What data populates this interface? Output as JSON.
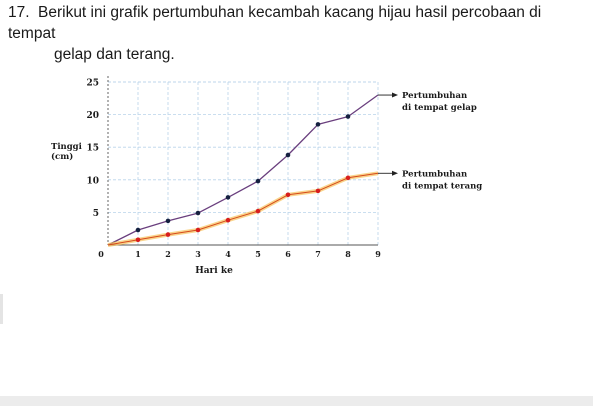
{
  "question": {
    "number": "17.",
    "line1": "Berikut ini grafik pertumbuhan kecambah kacang hijau hasil percobaan di tempat",
    "line2": "gelap dan terang."
  },
  "chart_data": {
    "type": "line",
    "title": "",
    "xlabel": "Hari ke",
    "ylabel": "Tinggi (cm)",
    "ylabel_lines": [
      "Tinggi",
      "(cm)"
    ],
    "x": [
      0,
      1,
      2,
      3,
      4,
      5,
      6,
      7,
      8,
      9
    ],
    "x_ticks": [
      "0",
      "1",
      "2",
      "3",
      "4",
      "5",
      "6",
      "7",
      "8",
      "9"
    ],
    "y_ticks": [
      "5",
      "10",
      "15",
      "20",
      "25"
    ],
    "xlim": [
      0,
      9
    ],
    "ylim": [
      0,
      25
    ],
    "grid": true,
    "series": [
      {
        "name": "Pertumbuhan di tempat gelap",
        "label_lines": [
          "Pertumbuhan",
          "di tempat gelap"
        ],
        "color": "#6a3f7e",
        "marker_color": "#152040",
        "x": [
          0,
          1,
          2,
          3,
          4,
          5,
          6,
          7,
          8,
          9
        ],
        "values": [
          0,
          2.3,
          3.7,
          4.9,
          7.3,
          9.8,
          13.8,
          18.5,
          19.7,
          23
        ],
        "markers": [
          false,
          true,
          true,
          true,
          true,
          true,
          true,
          true,
          true,
          false
        ]
      },
      {
        "name": "Pertumbuhan di tempat terang",
        "label_lines": [
          "Pertumbuhan",
          "di tempat terang"
        ],
        "color": "#f0a21e",
        "marker_color": "#d81e1e",
        "x": [
          0,
          1,
          2,
          3,
          4,
          5,
          6,
          7,
          8,
          9
        ],
        "values": [
          0,
          0.8,
          1.6,
          2.3,
          3.8,
          5.2,
          7.7,
          8.3,
          10.3,
          11
        ],
        "markers": [
          false,
          true,
          true,
          true,
          true,
          true,
          true,
          true,
          true,
          false
        ]
      }
    ]
  }
}
